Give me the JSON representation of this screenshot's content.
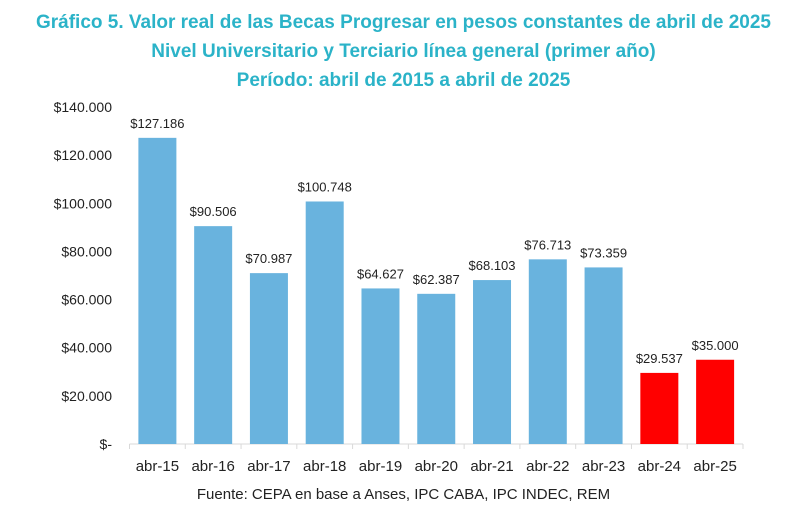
{
  "title": [
    "Gráfico 5. Valor real de las Becas Progresar en pesos constantes de abril de 2025",
    "Nivel Universitario y Terciario línea general (primer año)",
    "Período: abril de 2015 a abril de 2025"
  ],
  "source": "Fuente: CEPA en base a Anses, IPC CABA, IPC INDEC, REM",
  "chart_data": {
    "type": "bar",
    "categories": [
      "abr-15",
      "abr-16",
      "abr-17",
      "abr-18",
      "abr-19",
      "abr-20",
      "abr-21",
      "abr-22",
      "abr-23",
      "abr-24",
      "abr-25"
    ],
    "values": [
      127186,
      90506,
      70987,
      100748,
      64627,
      62387,
      68103,
      76713,
      73359,
      29537,
      35000
    ],
    "data_labels": [
      "$127.186",
      "$90.506",
      "$70.987",
      "$100.748",
      "$64.627",
      "$62.387",
      "$68.103",
      "$76.713",
      "$73.359",
      "$29.537",
      "$35.000"
    ],
    "colors": [
      "#69b3de",
      "#69b3de",
      "#69b3de",
      "#69b3de",
      "#69b3de",
      "#69b3de",
      "#69b3de",
      "#69b3de",
      "#69b3de",
      "#ff0000",
      "#ff0000"
    ],
    "ylim": [
      0,
      140000
    ],
    "yticks": [
      0,
      20000,
      40000,
      60000,
      80000,
      100000,
      120000,
      140000
    ],
    "ytick_labels": [
      "$-",
      "$20.000",
      "$40.000",
      "$60.000",
      "$80.000",
      "$100.000",
      "$120.000",
      "$140.000"
    ],
    "grid": false,
    "xlabel": "",
    "ylabel": ""
  }
}
